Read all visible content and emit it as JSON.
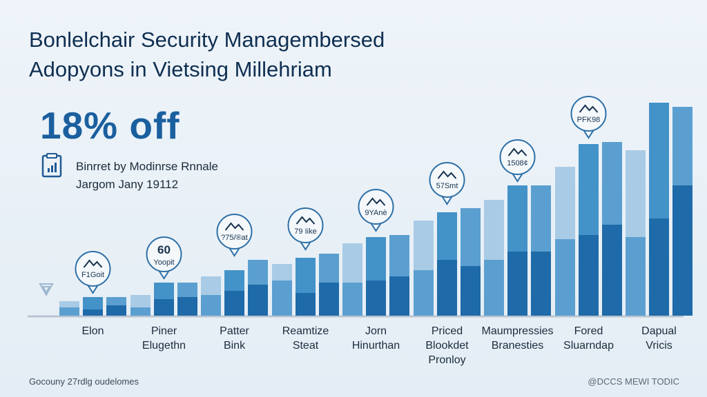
{
  "title_lines": [
    "Bonlelchair Security Managembersed",
    "Adopyons in Vietsing Millehriam"
  ],
  "highlight": "18% off",
  "source_lines": [
    "Binrret by Modinrse Rnnale",
    "Jargom Jany 19112"
  ],
  "footer": {
    "left": "Gocouny 27rdlg oudelomes",
    "right": "@DCCS MEWI TODIC"
  },
  "colors": {
    "light": "#5b9fd0",
    "mid": "#4392c8",
    "dark": "#1f6aa8",
    "pale": "#a9cbe6",
    "axis": "#b9c5d1"
  },
  "chart_data": {
    "type": "bar",
    "title": "",
    "ylim": [
      0,
      100
    ],
    "grid": false,
    "legend": "none",
    "groups": [
      {
        "label": [
          "Elon"
        ],
        "bars": [
          {
            "total": 7,
            "dark": 4
          },
          {
            "total": 9,
            "dark": 3
          },
          {
            "total": 9,
            "dark": 5
          }
        ]
      },
      {
        "label": [
          "Piner",
          "Elugethn"
        ],
        "bars": [
          {
            "total": 10,
            "dark": 4
          },
          {
            "total": 16,
            "dark": 8
          },
          {
            "total": 16,
            "dark": 9
          }
        ]
      },
      {
        "label": [
          "Patter",
          "Bink"
        ],
        "bars": [
          {
            "total": 19,
            "dark": 10
          },
          {
            "total": 22,
            "dark": 12
          },
          {
            "total": 27,
            "dark": 15
          }
        ]
      },
      {
        "label": [
          "Reamtize",
          "Steat"
        ],
        "bars": [
          {
            "total": 25,
            "dark": 17
          },
          {
            "total": 28,
            "dark": 11
          },
          {
            "total": 30,
            "dark": 16
          }
        ]
      },
      {
        "label": [
          "Jorn",
          "Hinurthan"
        ],
        "bars": [
          {
            "total": 35,
            "dark": 16
          },
          {
            "total": 38,
            "dark": 17
          },
          {
            "total": 39,
            "dark": 19
          }
        ]
      },
      {
        "label": [
          "Priced",
          "Blookdet",
          "Pronloy"
        ],
        "bars": [
          {
            "total": 46,
            "dark": 22
          },
          {
            "total": 50,
            "dark": 27
          },
          {
            "total": 52,
            "dark": 24
          }
        ]
      },
      {
        "label": [
          "Maumpressies",
          "Branesties"
        ],
        "bars": [
          {
            "total": 56,
            "dark": 27
          },
          {
            "total": 63,
            "dark": 31
          },
          {
            "total": 63,
            "dark": 31
          }
        ]
      },
      {
        "label": [
          "Fored",
          "Sluarndap"
        ],
        "bars": [
          {
            "total": 72,
            "dark": 37
          },
          {
            "total": 83,
            "dark": 39
          },
          {
            "total": 84,
            "dark": 44
          }
        ]
      },
      {
        "label": [
          "Dapual",
          "Vricis"
        ],
        "bars": [
          {
            "total": 80,
            "dark": 38
          },
          {
            "total": 103,
            "dark": 47
          },
          {
            "total": 101,
            "dark": 63
          }
        ]
      }
    ],
    "callouts": [
      {
        "group": 0,
        "text": "F1Goit"
      },
      {
        "group": 1,
        "text": "60",
        "subtext": "Yoopit"
      },
      {
        "group": 2,
        "text": "?75/®at"
      },
      {
        "group": 3,
        "text": "79 Iike"
      },
      {
        "group": 4,
        "text": "9YAnè"
      },
      {
        "group": 5,
        "text": "57Smt"
      },
      {
        "group": 6,
        "text": "1508¢"
      },
      {
        "group": 7,
        "text": "PFK98"
      }
    ]
  }
}
